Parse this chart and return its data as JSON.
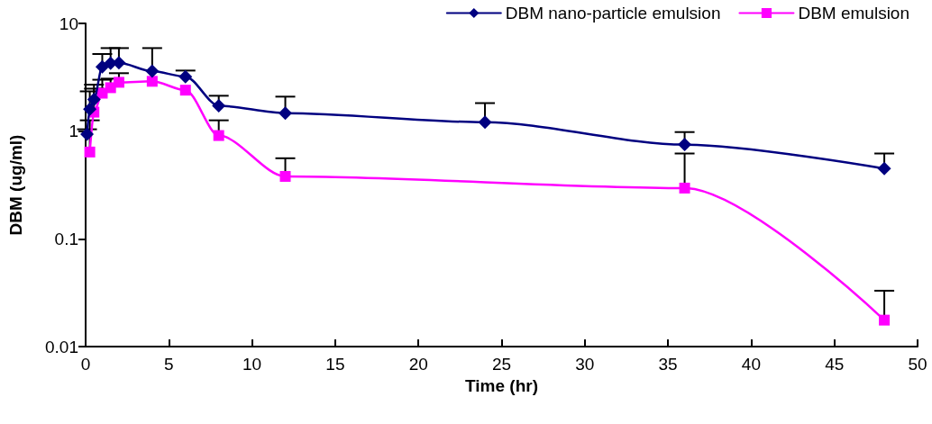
{
  "chart_data": {
    "type": "line",
    "xlabel": "Time (hr)",
    "ylabel": "DBM (ug/ml)",
    "log": "y",
    "xlim": [
      0,
      50
    ],
    "xticks": [
      0,
      5,
      10,
      15,
      20,
      25,
      30,
      35,
      40,
      45,
      50
    ],
    "ylim": [
      0.01,
      10
    ],
    "yticks": [
      0.01,
      0.1,
      1,
      10
    ],
    "grid": false,
    "legend": "top right",
    "series": [
      {
        "name": "DBM nano-particle emulsion",
        "color": "#000080",
        "marker": "diamond",
        "x": [
          0.083,
          0.25,
          0.5,
          1,
          1.5,
          2,
          4,
          6,
          8,
          12,
          24,
          36,
          48
        ],
        "values": [
          0.94,
          1.6,
          1.97,
          3.95,
          4.26,
          4.3,
          3.6,
          3.2,
          1.72,
          1.47,
          1.21,
          0.75,
          0.45
        ],
        "errors": [
          [
            0.94,
            1.04
          ],
          [
            1.6,
            2.34
          ],
          [
            1.97,
            2.7
          ],
          [
            3.95,
            5.2
          ],
          [
            4.26,
            5.9
          ],
          [
            4.3,
            5.9
          ],
          [
            3.6,
            5.9
          ],
          [
            3.2,
            3.65
          ],
          [
            1.72,
            2.13
          ],
          [
            1.47,
            2.09
          ],
          [
            1.21,
            1.82
          ],
          [
            0.75,
            0.98
          ],
          [
            0.45,
            0.62
          ]
        ]
      },
      {
        "name": "DBM emulsion",
        "color": "#ff00ff",
        "marker": "square",
        "x": [
          0.25,
          0.5,
          1,
          1.5,
          2,
          4,
          6,
          8,
          12,
          36,
          48
        ],
        "values": [
          0.64,
          1.5,
          2.25,
          2.53,
          2.84,
          2.9,
          2.4,
          0.91,
          0.38,
          0.296,
          0.0176
        ],
        "errors": [
          [
            0.64,
            1.26
          ],
          [
            1.5,
            2.48
          ],
          [
            2.25,
            3.0
          ],
          [
            2.53,
            3.07
          ],
          [
            2.84,
            3.45
          ],
          null,
          null,
          [
            0.91,
            1.26
          ],
          [
            0.38,
            0.56
          ],
          [
            0.296,
            0.62
          ],
          [
            0.0176,
            0.033
          ]
        ]
      }
    ]
  }
}
